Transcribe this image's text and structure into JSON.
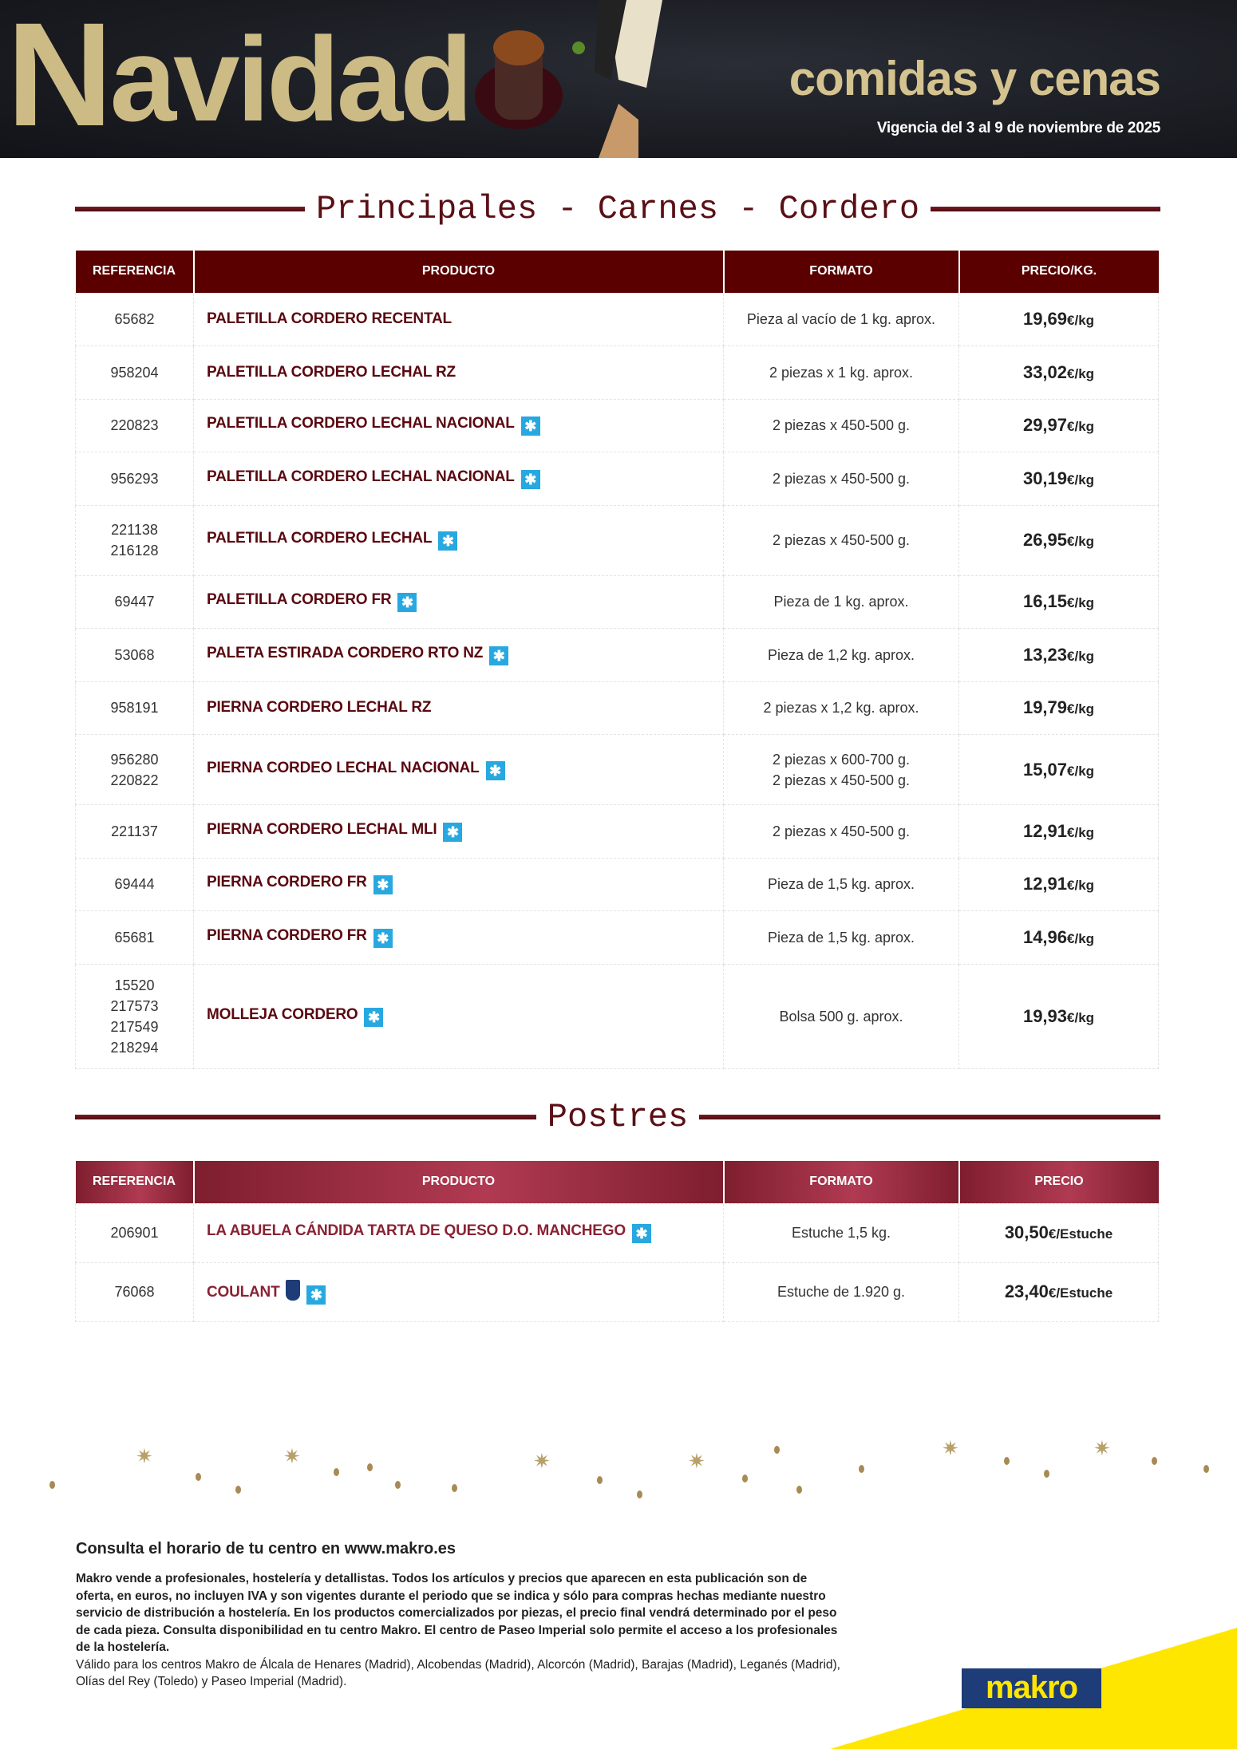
{
  "header": {
    "title_initial": "N",
    "title_rest": "avidad",
    "subtitle": "comidas y cenas",
    "validity": "Vigencia del 3 al 9 de noviembre de 2025"
  },
  "colors": {
    "gold": "#cdbb86",
    "wine": "#5a0000",
    "postres_header": "#b03a52",
    "frozen_badge": "#27a8e0",
    "makro_blue": "#1d3c78",
    "makro_yellow": "#ffe600"
  },
  "section1": {
    "title": "Principales - Carnes - Cordero",
    "headers": [
      "REFERENCIA",
      "PRODUCTO",
      "FORMATO",
      "PRECIO/KG."
    ],
    "rows": [
      {
        "ref": "65682",
        "product": "PALETILLA CORDERO RECENTAL",
        "frozen": false,
        "format": "Pieza al vacío de 1 kg. aprox.",
        "price": "19,69",
        "unit": "€/kg"
      },
      {
        "ref": "958204",
        "product": "PALETILLA CORDERO LECHAL RZ",
        "frozen": false,
        "format": "2 piezas x 1 kg. aprox.",
        "price": "33,02",
        "unit": "€/kg"
      },
      {
        "ref": "220823",
        "product": "PALETILLA CORDERO LECHAL NACIONAL",
        "frozen": true,
        "format": "2 piezas x 450-500 g.",
        "price": "29,97",
        "unit": "€/kg"
      },
      {
        "ref": "956293",
        "product": "PALETILLA CORDERO LECHAL NACIONAL",
        "frozen": true,
        "format": "2 piezas x 450-500 g.",
        "price": "30,19",
        "unit": "€/kg"
      },
      {
        "ref": "221138\n216128",
        "product": "PALETILLA CORDERO LECHAL",
        "frozen": true,
        "format": "2 piezas x 450-500 g.",
        "price": "26,95",
        "unit": "€/kg"
      },
      {
        "ref": "69447",
        "product": "PALETILLA CORDERO FR",
        "frozen": true,
        "format": "Pieza de 1 kg. aprox.",
        "price": "16,15",
        "unit": "€/kg"
      },
      {
        "ref": "53068",
        "product": "PALETA ESTIRADA CORDERO RTO NZ",
        "frozen": true,
        "format": "Pieza de 1,2 kg. aprox.",
        "price": "13,23",
        "unit": "€/kg"
      },
      {
        "ref": "958191",
        "product": "PIERNA CORDERO LECHAL RZ",
        "frozen": false,
        "format": "2 piezas x 1,2 kg. aprox.",
        "price": "19,79",
        "unit": "€/kg"
      },
      {
        "ref": "956280\n220822",
        "product": "PIERNA CORDEO LECHAL NACIONAL",
        "frozen": true,
        "format": "2 piezas x 600-700 g.\n2 piezas x 450-500 g.",
        "price": "15,07",
        "unit": "€/kg"
      },
      {
        "ref": "221137",
        "product": "PIERNA CORDERO LECHAL MLI",
        "frozen": true,
        "format": "2 piezas x 450-500 g.",
        "price": "12,91",
        "unit": "€/kg"
      },
      {
        "ref": "69444",
        "product": "PIERNA CORDERO FR",
        "frozen": true,
        "format": "Pieza de 1,5 kg. aprox.",
        "price": "12,91",
        "unit": "€/kg"
      },
      {
        "ref": "65681",
        "product": "PIERNA CORDERO FR",
        "frozen": true,
        "format": "Pieza de 1,5 kg. aprox.",
        "price": "14,96",
        "unit": "€/kg"
      },
      {
        "ref": "15520\n217573\n217549\n218294",
        "product": "MOLLEJA CORDERO",
        "frozen": true,
        "format": "Bolsa 500 g. aprox.",
        "price": "19,93",
        "unit": "€/kg"
      }
    ]
  },
  "section2": {
    "title": "Postres",
    "headers": [
      "REFERENCIA",
      "PRODUCTO",
      "FORMATO",
      "PRECIO"
    ],
    "rows": [
      {
        "ref": "206901",
        "product": "LA ABUELA CÁNDIDA TARTA DE QUESO D.O. MANCHEGO",
        "frozen": true,
        "chef": false,
        "format": "Estuche 1,5 kg.",
        "price": "30,50",
        "unit": "€/Estuche"
      },
      {
        "ref": "76068",
        "product": "COULANT",
        "frozen": true,
        "chef": true,
        "format": "Estuche de 1.920 g.",
        "price": "23,40",
        "unit": "€/Estuche"
      }
    ]
  },
  "footer": {
    "headline": "Consulta el horario de tu centro en www.makro.es",
    "legal_bold": "Makro vende a profesionales, hostelería y detallistas. Todos los artículos y precios que aparecen en esta publicación son de oferta, en euros, no incluyen IVA y son vigentes durante el periodo que se indica y sólo para compras hechas mediante nuestro servicio de distribución a hostelería. En los productos comercializados por piezas, el precio final vendrá determinado por el peso de cada pieza. Consulta disponibilidad en tu centro Makro. El centro de Paseo Imperial solo permite el acceso a los profesionales de la hostelería.",
    "legal_centers": "Válido para los centros Makro de Álcala de Henares (Madrid), Alcobendas (Madrid), Alcorcón (Madrid), Barajas (Madrid), Leganés (Madrid), Olías del Rey (Toledo) y Paseo Imperial (Madrid).",
    "logo": "makro"
  },
  "icons": {
    "frozen": "snowflake-icon",
    "chef": "makro-chef-badge-icon"
  }
}
